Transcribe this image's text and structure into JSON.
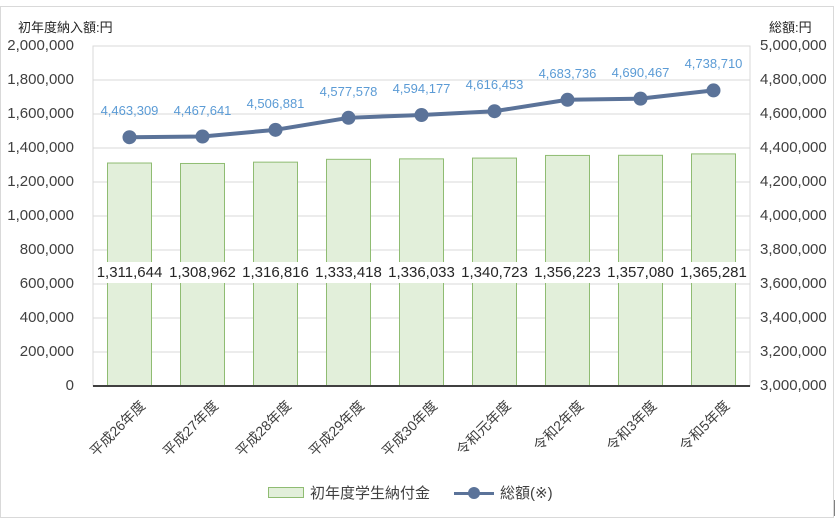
{
  "chart_data": {
    "type": "bar+line",
    "title": "",
    "left_axis_title": "初年度納入額:円",
    "right_axis_title": "総額:円",
    "categories": [
      "平成26年度",
      "平成27年度",
      "平成28年度",
      "平成29年度",
      "平成30年度",
      "令和元年度",
      "令和2年度",
      "令和3年度",
      "令和5年度"
    ],
    "series": [
      {
        "name": "初年度学生納付金",
        "type": "bar",
        "axis": "left",
        "color": "#e2efda",
        "border_color": "#8fbc72",
        "values": [
          1311644,
          1308962,
          1316816,
          1333418,
          1336033,
          1340723,
          1356223,
          1357080,
          1365281
        ],
        "labels": [
          "1,311,644",
          "1,308,962",
          "1,316,816",
          "1,333,418",
          "1,336,033",
          "1,340,723",
          "1,356,223",
          "1,357,080",
          "1,365,281"
        ]
      },
      {
        "name": "総額(※)",
        "type": "line",
        "axis": "right",
        "color": "#5b7399",
        "label_color": "#5b9bd5",
        "values": [
          4463309,
          4467641,
          4506881,
          4577578,
          4594177,
          4616453,
          4683736,
          4690467,
          4738710
        ],
        "labels": [
          "4,463,309",
          "4,467,641",
          "4,506,881",
          "4,577,578",
          "4,594,177",
          "4,616,453",
          "4,683,736",
          "4,690,467",
          "4,738,710"
        ]
      }
    ],
    "left_axis": {
      "ylim": [
        0,
        2000000
      ],
      "step": 200000,
      "ticks": [
        "2,000,000",
        "1,800,000",
        "1,600,000",
        "1,400,000",
        "1,200,000",
        "1,000,000",
        "800,000",
        "600,000",
        "400,000",
        "200,000",
        "0"
      ]
    },
    "right_axis": {
      "ylim": [
        3000000,
        5000000
      ],
      "step": 200000,
      "ticks": [
        "5,000,000",
        "4,800,000",
        "4,600,000",
        "4,400,000",
        "4,200,000",
        "4,000,000",
        "3,800,000",
        "3,600,000",
        "3,400,000",
        "3,200,000",
        "3,000,000"
      ]
    },
    "grid": true,
    "legend_position": "bottom"
  },
  "legend": {
    "bar_label": "初年度学生納付金",
    "line_label": "総額(※)"
  }
}
